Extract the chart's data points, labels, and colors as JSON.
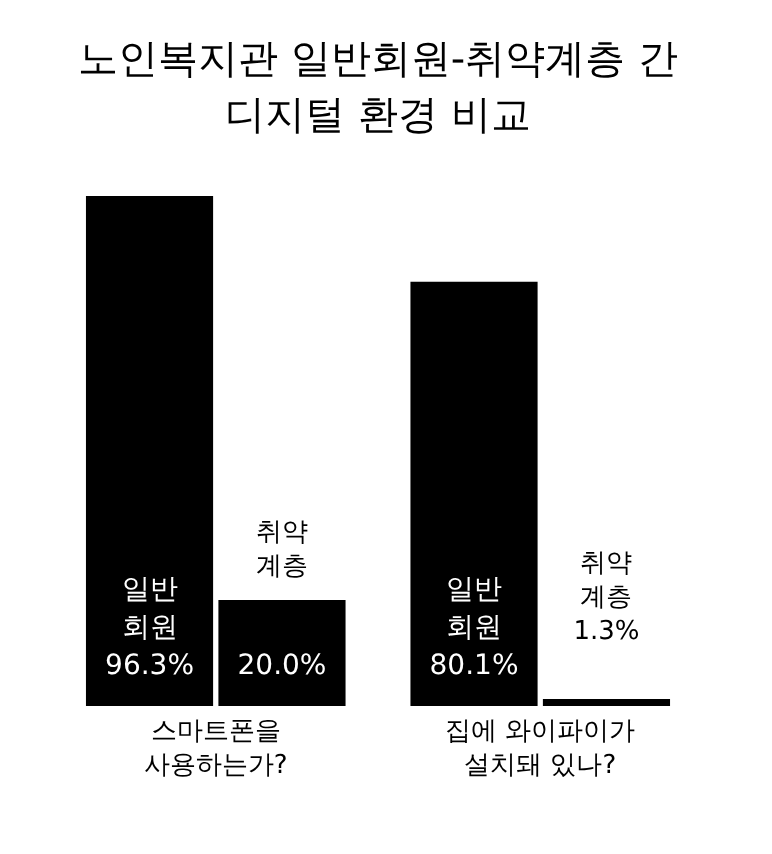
{
  "chart_data": {
    "type": "bar",
    "title": "노인복지관 일반회원-취약계층 간 디지털 환경 비교",
    "categories": [
      "스마트폰을 사용하는가?",
      "집에 와이파이가 설치돼 있나?"
    ],
    "series": [
      {
        "name": "일반회원",
        "color": "#000000",
        "values": [
          96.3,
          80.1
        ],
        "value_labels": [
          "96.3%",
          "80.1%"
        ]
      },
      {
        "name": "취약계층",
        "color": "#000000",
        "values": [
          20.0,
          1.3
        ],
        "value_labels": [
          "20.0%",
          "1.3%"
        ]
      }
    ],
    "legend": false,
    "grid": false
  }
}
